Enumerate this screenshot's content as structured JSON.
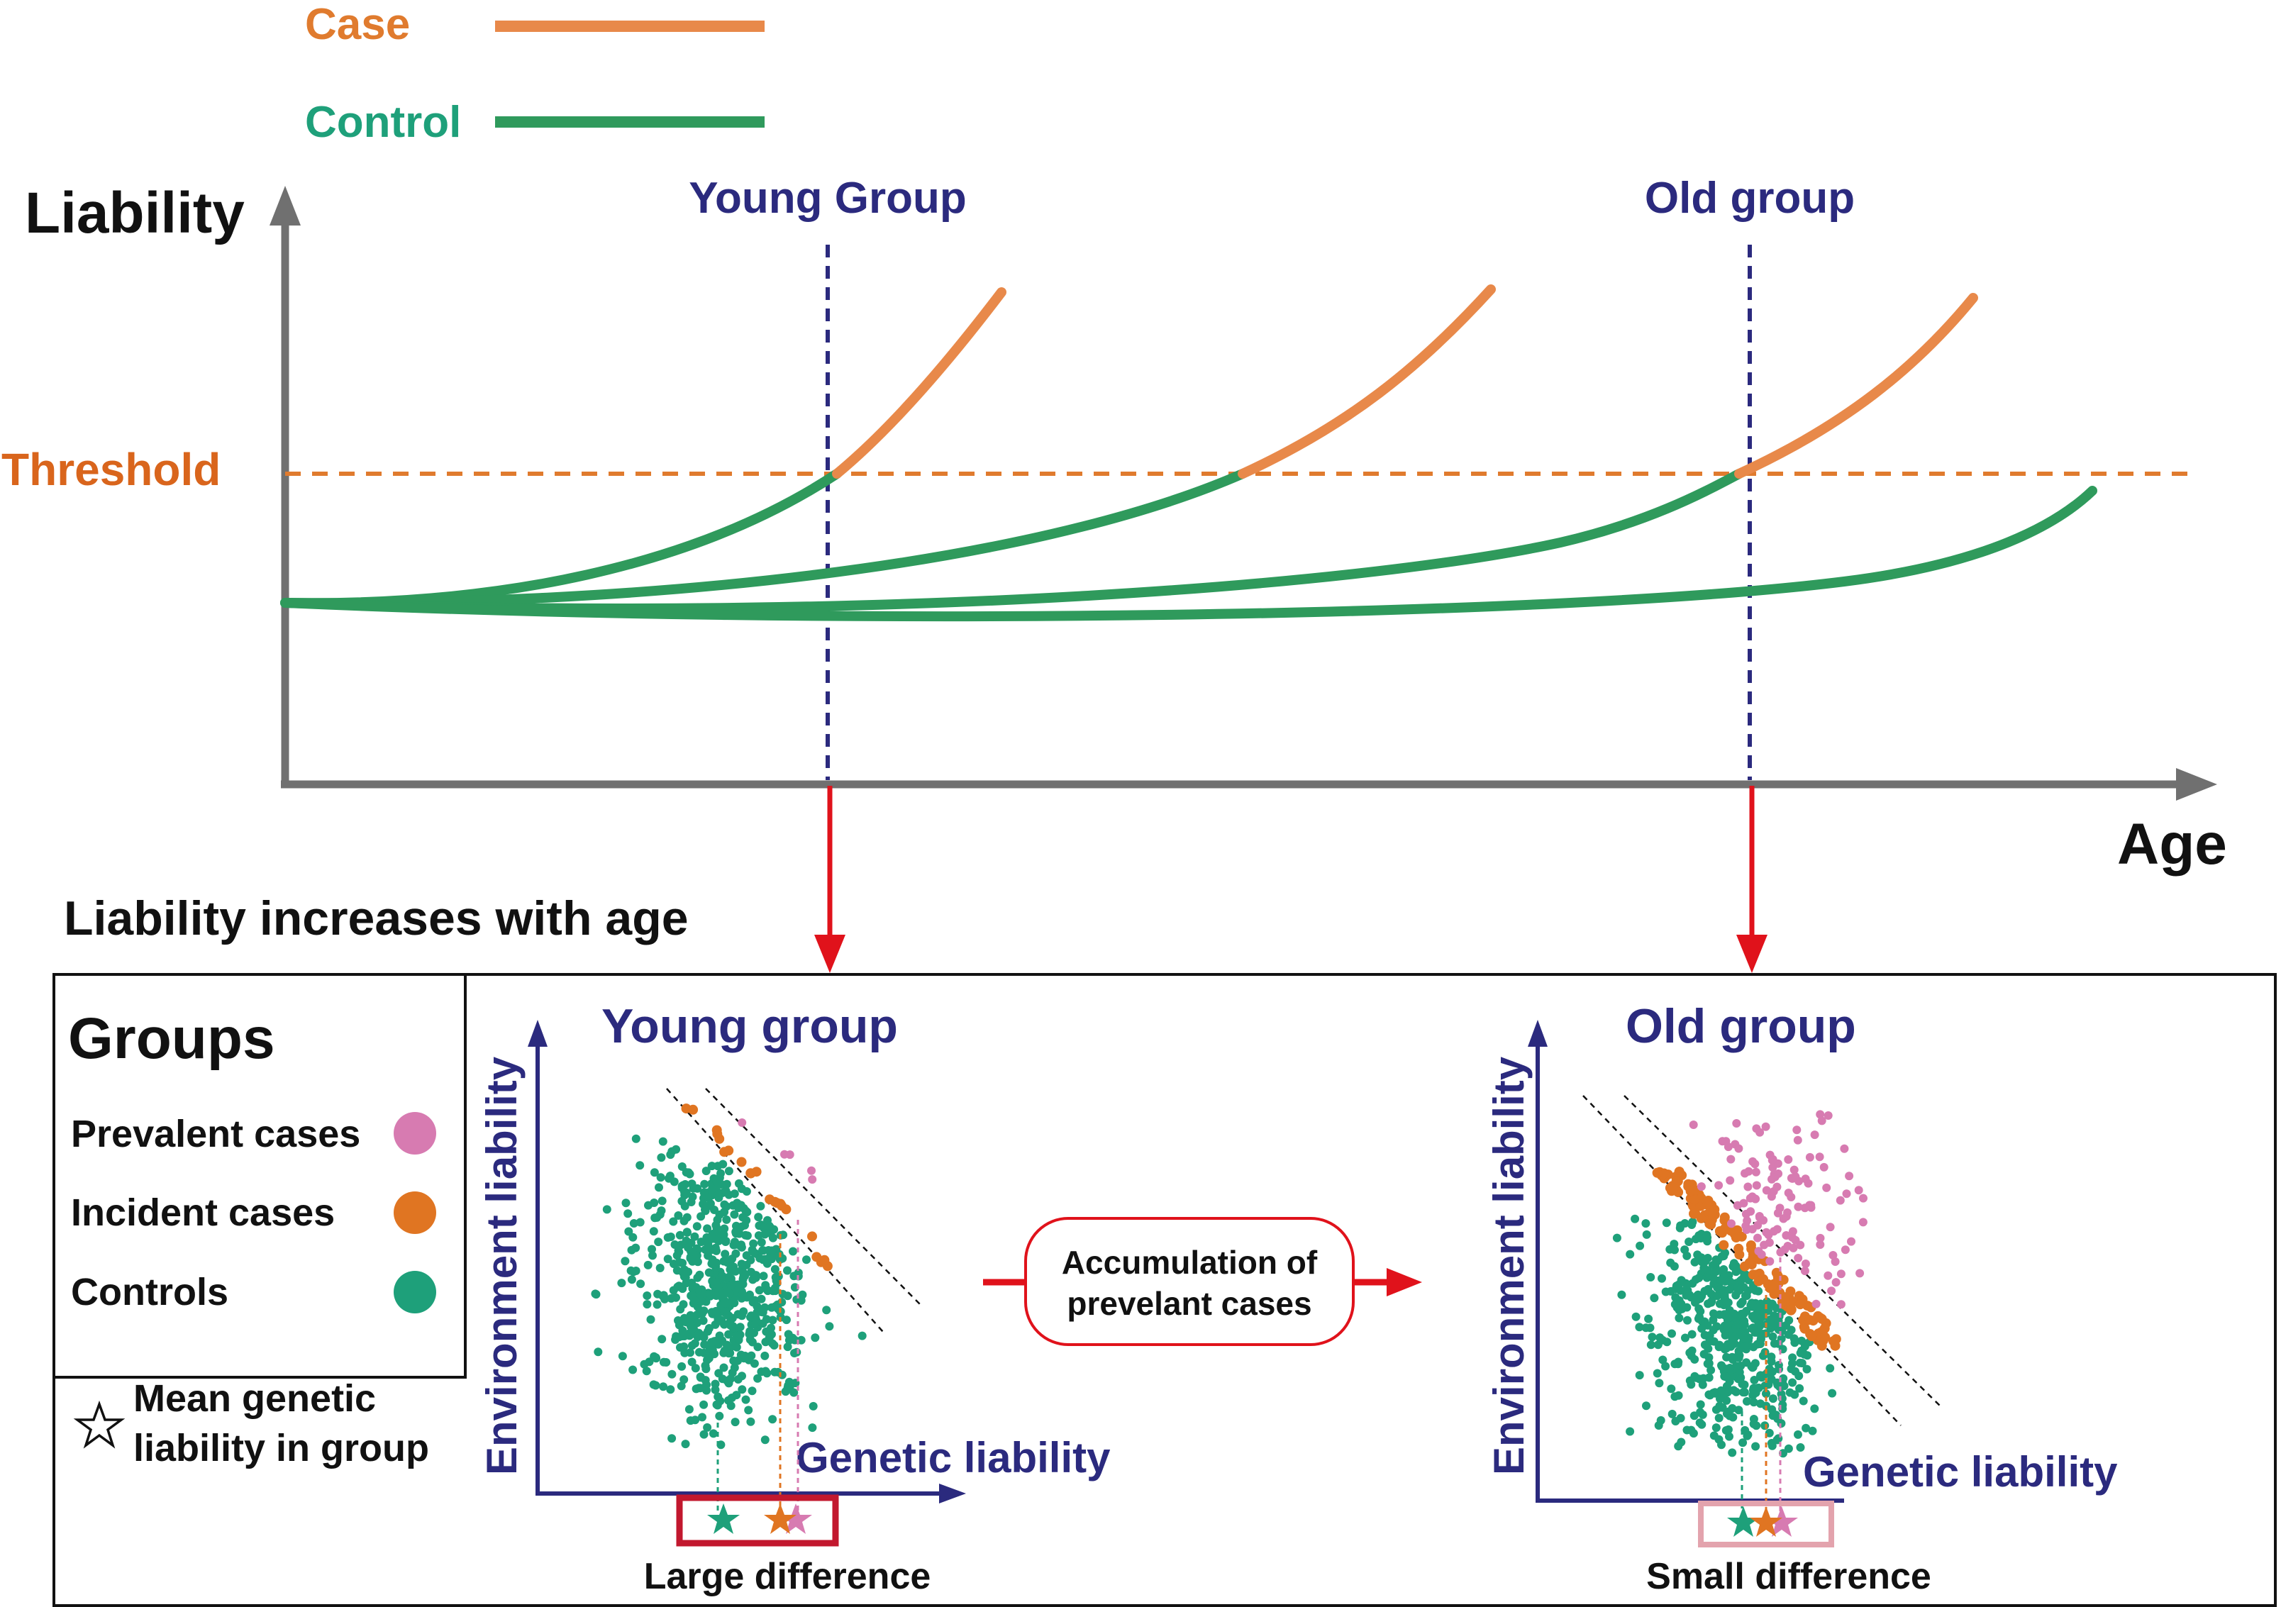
{
  "legend_top": {
    "case_label": "Case",
    "control_label": "Control"
  },
  "main_plot": {
    "y_axis_label": "Liability",
    "x_axis_label": "Age",
    "threshold_label": "Threshold",
    "young_marker_label": "Young Group",
    "old_marker_label": "Old group",
    "caption": "Liability increases with age"
  },
  "groups_legend": {
    "title": "Groups",
    "prevalent": "Prevalent cases",
    "incident": "Incident cases",
    "controls": "Controls",
    "star_line1": "Mean genetic",
    "star_line2": "liability in group"
  },
  "young_panel": {
    "title": "Young group",
    "y_label": "Environment liability",
    "x_label": "Genetic liability",
    "difference_label": "Large difference"
  },
  "old_panel": {
    "title": "Old group",
    "y_label": "Environment liability",
    "x_label": "Genetic liability",
    "difference_label": "Small difference"
  },
  "transition": {
    "line1": "Accumulation of",
    "line2": "prevelant cases"
  },
  "colors": {
    "case": "#e8894a",
    "control": "#2f9a5c",
    "threshold": "#d9651c",
    "prevalent": "#d77bb1",
    "incident": "#e07522",
    "controls_dot": "#1ea07a",
    "group_marker": "#2b2a7e",
    "arrow": "#e0121b",
    "axis": "#707070"
  }
}
